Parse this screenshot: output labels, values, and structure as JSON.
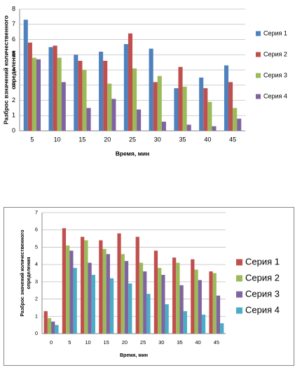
{
  "chart_data": [
    {
      "type": "bar",
      "y_label": [
        "Разброс взначений количественного",
        "определения"
      ],
      "x_label": "Время, мин",
      "categories": [
        "5",
        "10",
        "15",
        "20",
        "25",
        "30",
        "35",
        "40",
        "45"
      ],
      "ylim": [
        0,
        8
      ],
      "yticks": [
        0,
        1,
        2,
        3,
        4,
        5,
        6,
        7,
        8
      ],
      "grid": true,
      "legend": "right",
      "series": [
        {
          "name": "Серия 1",
          "color": "#4f81bd",
          "values": [
            7.3,
            5.5,
            5.0,
            5.2,
            5.7,
            5.4,
            2.8,
            3.5,
            4.3
          ]
        },
        {
          "name": "Серия 2",
          "color": "#c0504d",
          "values": [
            5.8,
            5.6,
            4.6,
            4.6,
            6.4,
            3.2,
            4.2,
            2.8,
            3.2
          ]
        },
        {
          "name": "Серия 3",
          "color": "#9bbb59",
          "values": [
            4.8,
            4.8,
            4.0,
            3.1,
            4.1,
            3.6,
            2.9,
            1.9,
            1.5
          ]
        },
        {
          "name": "Серия 4",
          "color": "#8064a2",
          "values": [
            4.7,
            3.2,
            1.5,
            2.1,
            1.4,
            0.6,
            0.4,
            0.3,
            0.8
          ]
        }
      ]
    },
    {
      "type": "bar",
      "y_label": [
        "Разброс значений количественного",
        "определения"
      ],
      "x_label": "Время, мин",
      "categories": [
        "0",
        "5",
        "10",
        "15",
        "20",
        "25",
        "30",
        "35",
        "40",
        "45"
      ],
      "ylim": [
        0,
        7
      ],
      "yticks": [
        0,
        1,
        2,
        3,
        4,
        5,
        6,
        7
      ],
      "grid": true,
      "legend": "right",
      "series": [
        {
          "name": "Серия 1",
          "color": "#c0504d",
          "values": [
            1.3,
            6.1,
            5.6,
            5.4,
            5.8,
            5.6,
            4.8,
            4.4,
            4.3,
            3.6
          ]
        },
        {
          "name": "Серия 2",
          "color": "#9bbb59",
          "values": [
            0.9,
            5.1,
            5.4,
            4.9,
            4.6,
            4.1,
            3.8,
            4.1,
            3.7,
            3.5
          ]
        },
        {
          "name": "Серия 3",
          "color": "#8064a2",
          "values": [
            0.7,
            4.8,
            4.1,
            4.6,
            4.2,
            3.6,
            3.4,
            2.8,
            3.1,
            2.2
          ]
        },
        {
          "name": "Серия 4",
          "color": "#4bacc6",
          "values": [
            0.5,
            3.8,
            3.4,
            3.2,
            2.9,
            2.3,
            1.7,
            1.3,
            1.1,
            0.6
          ]
        }
      ]
    }
  ]
}
